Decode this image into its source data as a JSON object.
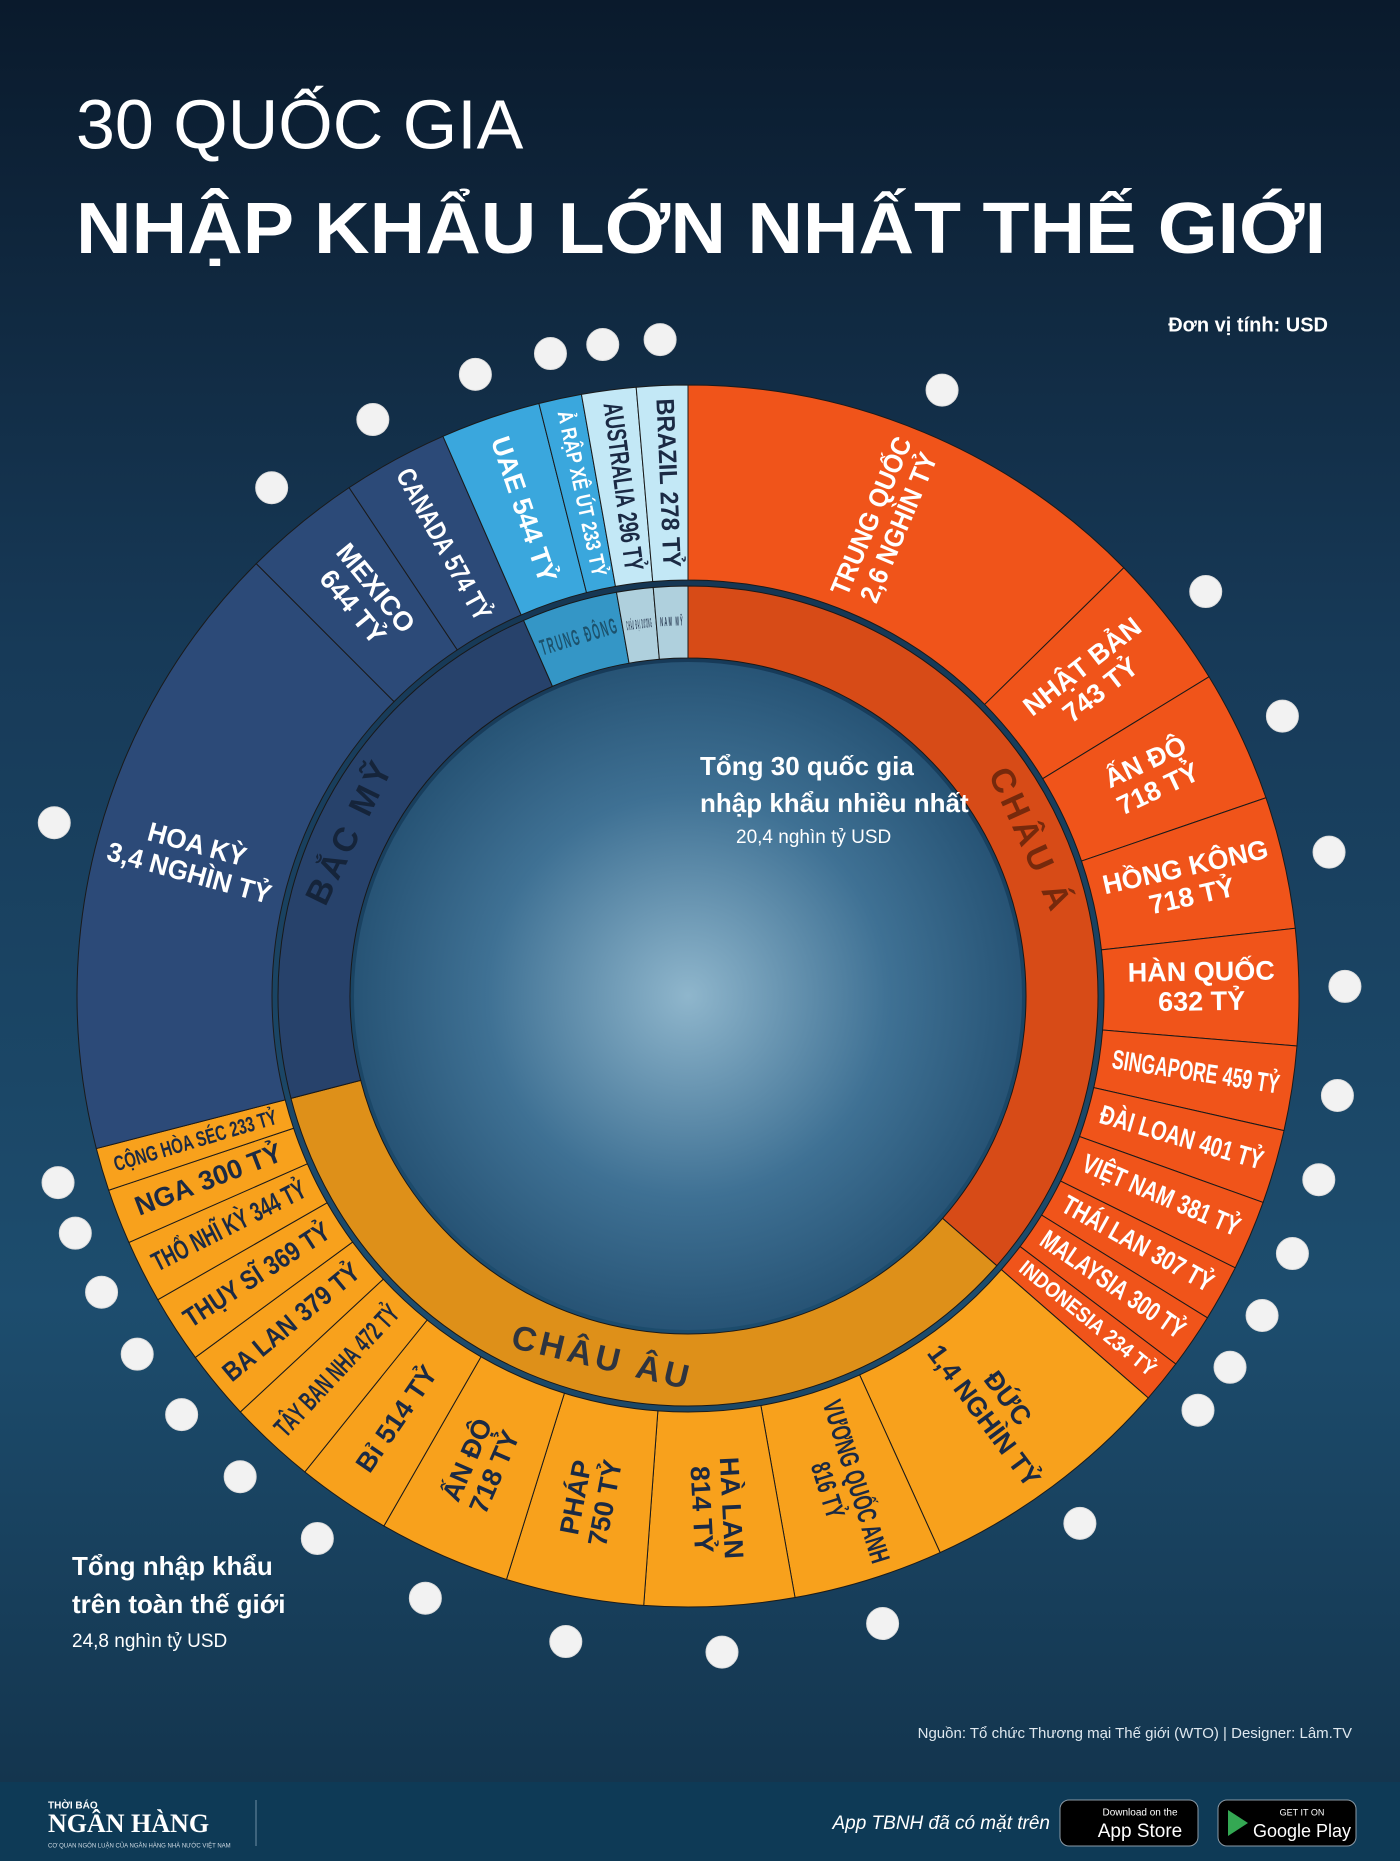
{
  "header": {
    "title_line1": "30 QUỐC GIA",
    "title_line2": "NHẬP KHẨU LỚN NHẤT THẾ GIỚI",
    "unit": "Đơn vị tính: USD"
  },
  "chart_data": {
    "type": "sunburst",
    "series": [
      {
        "name": "CHÂU Á",
        "color": "#f0541a",
        "categories": [
          "TRUNG QUỐC",
          "NHẬT BẢN",
          "ẤN ĐỘ",
          "HỒNG KÔNG",
          "HÀN QUỐC",
          "SINGAPORE",
          "ĐÀI LOAN",
          "VIỆT NAM",
          "THÁI LAN",
          "MALAYSIA",
          "INDONESIA"
        ],
        "values": [
          2600,
          743,
          718,
          718,
          632,
          459,
          401,
          381,
          307,
          300,
          234
        ],
        "value_labels": [
          "2,6 NGHÌN TỶ",
          "743 TỶ",
          "718 TỶ",
          "718 TỶ",
          "632 TỶ",
          "459 TỶ",
          "401 TỶ",
          "381 TỶ",
          "307 TỶ",
          "300 TỶ",
          "234 TỶ"
        ]
      },
      {
        "name": "CHÂU ÂU",
        "color": "#f8a11c",
        "categories": [
          "ĐỨC",
          "VƯƠNG QUỐC ANH",
          "HÀ LAN",
          "PHÁP",
          "ẤN ĐỘ",
          "Bỉ",
          "TÂY BAN NHA",
          "BA LAN",
          "THỤY SĨ",
          "THỔ NHĨ KỲ",
          "NGA",
          "CỘNG HÒA SÉC"
        ],
        "values": [
          1400,
          816,
          814,
          750,
          718,
          514,
          472,
          379,
          369,
          344,
          300,
          233
        ],
        "value_labels": [
          "1,4 NGHÌN TỶ",
          "816 TỶ",
          "814 TỶ",
          "750 TỶ",
          "718 TỶ",
          "514 TỶ",
          "472 TỶ",
          "379 TỶ",
          "369 TỶ",
          "344 TỶ",
          "300 TỶ",
          "233 TỶ"
        ]
      },
      {
        "name": "BẮC MỸ",
        "color": "#2c4a78",
        "categories": [
          "HOA KỲ",
          "MEXICO",
          "CANADA"
        ],
        "values": [
          3400,
          644,
          574
        ],
        "value_labels": [
          "3,4 NGHÌN TỶ",
          "644 TỶ",
          "574 TỶ"
        ]
      },
      {
        "name": "TRUNG ĐÔNG",
        "color": "#3aa7dd",
        "categories": [
          "UAE",
          "Ả RẬP XÊ ÚT"
        ],
        "values": [
          544,
          233
        ],
        "value_labels": [
          "544 TỶ",
          "233 TỶ"
        ]
      },
      {
        "name": "CHÂU ĐẠI DƯƠNG",
        "color": "#c3e8f6",
        "categories": [
          "AUSTRALIA"
        ],
        "values": [
          296
        ],
        "value_labels": [
          "296 TỶ"
        ]
      },
      {
        "name": "NAM MỸ",
        "color": "#c3e8f6",
        "categories": [
          "BRAZIL"
        ],
        "values": [
          278
        ],
        "value_labels": [
          "278 TỶ"
        ]
      }
    ],
    "annotations": {
      "center_line1": "Tổng 30 quốc gia",
      "center_line2": "nhập khẩu nhiều nhất",
      "center_value": "20,4 nghìn tỷ USD",
      "world_line1": "Tổng nhập khẩu",
      "world_line2": "trên toàn thế giới",
      "world_value": "24,8 nghìn tỷ USD"
    }
  },
  "source": "Nguồn: Tổ chức Thương mại Thế giới (WTO) | Designer: Lâm.TV",
  "footer": {
    "brand_top": "THỜI BÁO",
    "brand": "NGÂN HÀNG",
    "tagline": "CƠ QUAN NGÔN LUẬN CỦA NGÂN HÀNG NHÀ NƯỚC VIỆT NAM",
    "app_text": "App TBNH đã có mặt trên",
    "appstore_small": "Download on the",
    "appstore": "App Store",
    "gplay_small": "GET IT ON",
    "gplay": "Google Play"
  }
}
